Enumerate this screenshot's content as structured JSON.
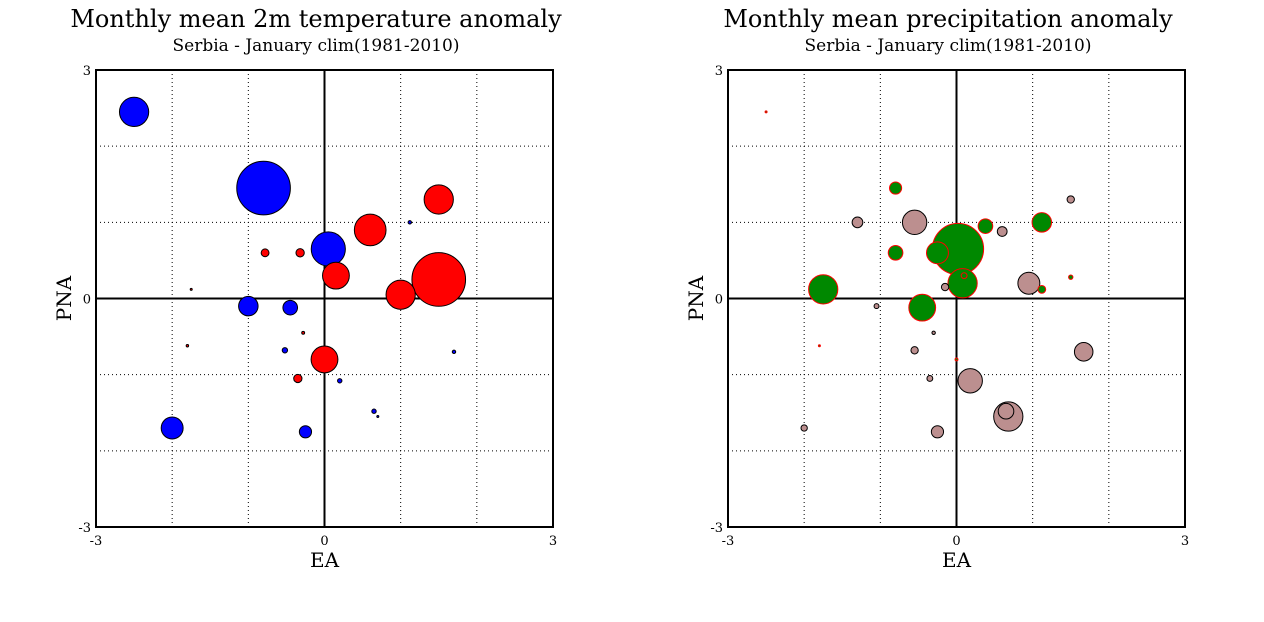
{
  "chart_data": [
    {
      "type": "scatter",
      "title": "Monthly mean 2m temperature anomaly",
      "subtitle": "Serbia - January  clim(1981-2010)",
      "xlabel": "EA",
      "ylabel": "PNA",
      "xlim": [
        -3,
        3
      ],
      "ylim": [
        -3,
        3
      ],
      "x_tick_labels": [
        "-3",
        "0",
        "3"
      ],
      "y_tick_labels": [
        "-3",
        "0",
        "3"
      ],
      "grid": true,
      "colors": {
        "positive": "#ff0000",
        "negative": "#0000ff",
        "outline": "#000000"
      },
      "points": [
        {
          "x": -2.5,
          "y": 2.45,
          "size": 0.6,
          "sign": "negative"
        },
        {
          "x": -0.8,
          "y": 1.45,
          "size": 1.1,
          "sign": "negative"
        },
        {
          "x": 1.5,
          "y": 1.3,
          "size": 0.6,
          "sign": "positive"
        },
        {
          "x": 1.12,
          "y": 1.0,
          "size": 0.07,
          "sign": "negative"
        },
        {
          "x": 0.6,
          "y": 0.9,
          "size": 0.65,
          "sign": "positive"
        },
        {
          "x": 0.05,
          "y": 0.65,
          "size": 0.7,
          "sign": "negative"
        },
        {
          "x": -0.78,
          "y": 0.6,
          "size": 0.16,
          "sign": "positive"
        },
        {
          "x": -0.32,
          "y": 0.6,
          "size": 0.17,
          "sign": "positive"
        },
        {
          "x": 0.15,
          "y": 0.3,
          "size": 0.55,
          "sign": "positive"
        },
        {
          "x": 1.5,
          "y": 0.25,
          "size": 1.1,
          "sign": "positive"
        },
        {
          "x": -1.75,
          "y": 0.12,
          "size": 0.02,
          "sign": "positive"
        },
        {
          "x": 1.0,
          "y": 0.05,
          "size": 0.6,
          "sign": "positive"
        },
        {
          "x": -1.0,
          "y": -0.1,
          "size": 0.4,
          "sign": "negative"
        },
        {
          "x": -0.45,
          "y": -0.12,
          "size": 0.3,
          "sign": "negative"
        },
        {
          "x": -0.28,
          "y": -0.45,
          "size": 0.06,
          "sign": "positive"
        },
        {
          "x": -1.8,
          "y": -0.62,
          "size": 0.05,
          "sign": "positive"
        },
        {
          "x": -0.52,
          "y": -0.68,
          "size": 0.11,
          "sign": "negative"
        },
        {
          "x": 1.7,
          "y": -0.7,
          "size": 0.07,
          "sign": "negative"
        },
        {
          "x": 0.0,
          "y": -0.8,
          "size": 0.55,
          "sign": "positive"
        },
        {
          "x": -0.35,
          "y": -1.05,
          "size": 0.17,
          "sign": "positive"
        },
        {
          "x": 0.2,
          "y": -1.08,
          "size": 0.09,
          "sign": "negative"
        },
        {
          "x": 0.65,
          "y": -1.48,
          "size": 0.09,
          "sign": "negative"
        },
        {
          "x": 0.7,
          "y": -1.55,
          "size": 0.03,
          "sign": "negative"
        },
        {
          "x": -2.0,
          "y": -1.7,
          "size": 0.45,
          "sign": "negative"
        },
        {
          "x": -0.25,
          "y": -1.75,
          "size": 0.25,
          "sign": "negative"
        }
      ]
    },
    {
      "type": "scatter",
      "title": "Monthly mean precipitation anomaly",
      "subtitle": "Serbia - January  clim(1981-2010)",
      "xlabel": "EA",
      "ylabel": "PNA",
      "xlim": [
        -3,
        3
      ],
      "ylim": [
        -3,
        3
      ],
      "x_tick_labels": [
        "-3",
        "0",
        "3"
      ],
      "y_tick_labels": [
        "-3",
        "0",
        "3"
      ],
      "grid": true,
      "colors": {
        "positive": "#008800",
        "negative": "#bc8f8f",
        "positive_outline": "#ff0000",
        "negative_outline": "#000000"
      },
      "points": [
        {
          "x": -2.5,
          "y": 2.45,
          "size": 0.02,
          "sign": "positive"
        },
        {
          "x": -0.8,
          "y": 1.45,
          "size": 0.25,
          "sign": "positive"
        },
        {
          "x": 1.5,
          "y": 1.3,
          "size": 0.15,
          "sign": "negative"
        },
        {
          "x": 1.12,
          "y": 1.0,
          "size": 0.4,
          "sign": "positive"
        },
        {
          "x": 0.38,
          "y": 0.95,
          "size": 0.3,
          "sign": "positive"
        },
        {
          "x": -1.3,
          "y": 1.0,
          "size": 0.22,
          "sign": "negative"
        },
        {
          "x": -0.55,
          "y": 1.0,
          "size": 0.5,
          "sign": "negative"
        },
        {
          "x": 0.6,
          "y": 0.88,
          "size": 0.2,
          "sign": "negative"
        },
        {
          "x": 0.02,
          "y": 0.65,
          "size": 1.05,
          "sign": "positive"
        },
        {
          "x": -0.8,
          "y": 0.6,
          "size": 0.3,
          "sign": "positive"
        },
        {
          "x": -0.25,
          "y": 0.6,
          "size": 0.45,
          "sign": "positive"
        },
        {
          "x": 0.1,
          "y": 0.3,
          "size": 0.12,
          "sign": "positive"
        },
        {
          "x": 1.5,
          "y": 0.28,
          "size": 0.09,
          "sign": "positive"
        },
        {
          "x": -1.75,
          "y": 0.12,
          "size": 0.6,
          "sign": "positive"
        },
        {
          "x": 0.08,
          "y": 0.2,
          "size": 0.6,
          "sign": "positive"
        },
        {
          "x": 0.95,
          "y": 0.2,
          "size": 0.45,
          "sign": "negative"
        },
        {
          "x": -0.15,
          "y": 0.15,
          "size": 0.15,
          "sign": "negative"
        },
        {
          "x": 1.12,
          "y": 0.12,
          "size": 0.16,
          "sign": "positive"
        },
        {
          "x": -1.05,
          "y": -0.1,
          "size": 0.1,
          "sign": "negative"
        },
        {
          "x": -0.45,
          "y": -0.12,
          "size": 0.55,
          "sign": "positive"
        },
        {
          "x": -0.3,
          "y": -0.45,
          "size": 0.07,
          "sign": "negative"
        },
        {
          "x": -1.8,
          "y": -0.62,
          "size": 0.01,
          "sign": "positive"
        },
        {
          "x": -0.55,
          "y": -0.68,
          "size": 0.15,
          "sign": "negative"
        },
        {
          "x": 1.67,
          "y": -0.7,
          "size": 0.38,
          "sign": "negative"
        },
        {
          "x": 0.0,
          "y": -0.8,
          "size": 0.06,
          "sign": "positive"
        },
        {
          "x": -0.35,
          "y": -1.05,
          "size": 0.12,
          "sign": "negative"
        },
        {
          "x": 0.18,
          "y": -1.08,
          "size": 0.5,
          "sign": "negative"
        },
        {
          "x": 0.68,
          "y": -1.55,
          "size": 0.6,
          "sign": "negative"
        },
        {
          "x": 0.65,
          "y": -1.48,
          "size": 0.32,
          "sign": "negative"
        },
        {
          "x": -2.0,
          "y": -1.7,
          "size": 0.13,
          "sign": "negative"
        },
        {
          "x": -0.25,
          "y": -1.75,
          "size": 0.25,
          "sign": "negative"
        }
      ]
    }
  ]
}
